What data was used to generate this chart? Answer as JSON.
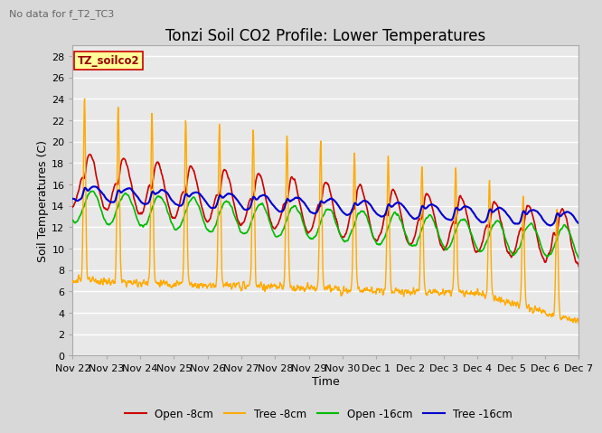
{
  "title": "Tonzi Soil CO2 Profile: Lower Temperatures",
  "subtitle": "No data for f_T2_TC3",
  "legend_label": "TZ_soilco2",
  "xlabel": "Time",
  "ylabel": "Soil Temperatures (C)",
  "ylim": [
    0,
    29
  ],
  "yticks": [
    0,
    2,
    4,
    6,
    8,
    10,
    12,
    14,
    16,
    18,
    20,
    22,
    24,
    26,
    28
  ],
  "colors": {
    "open_8cm": "#cc0000",
    "tree_8cm": "#ffaa00",
    "open_16cm": "#00bb00",
    "tree_16cm": "#0000cc"
  },
  "x_labels": [
    "Nov 22",
    "Nov 23",
    "Nov 24",
    "Nov 25",
    "Nov 26",
    "Nov 27",
    "Nov 28",
    "Nov 29",
    "Nov 30",
    "Dec 1",
    "Dec 2",
    "Dec 3",
    "Dec 4",
    "Dec 5",
    "Dec 6",
    "Dec 7"
  ],
  "background_color": "#d8d8d8",
  "plot_bg_color": "#e8e8e8",
  "grid_color": "#ffffff",
  "title_fontsize": 12,
  "axis_fontsize": 9,
  "tick_fontsize": 8
}
